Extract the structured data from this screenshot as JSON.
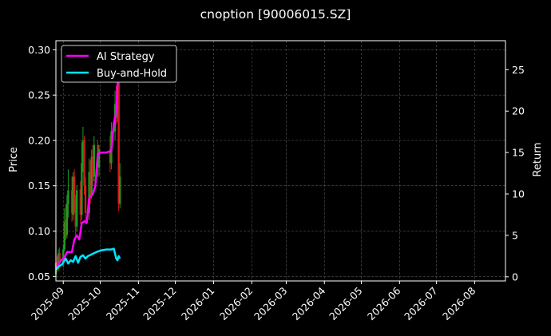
{
  "chart_data": {
    "type": "line",
    "title": "cnoption [90006015.SZ]",
    "ylabel_left": "Price",
    "ylabel_right": "Return",
    "x_ticks": [
      "2025-09",
      "2025-10",
      "2025-11",
      "2025-12",
      "2026-01",
      "2026-02",
      "2026-03",
      "2026-04",
      "2026-05",
      "2026-06",
      "2026-07",
      "2026-08"
    ],
    "x_range": [
      "2025-08-26",
      "2026-08-26"
    ],
    "ylim_left": [
      0.045,
      0.31
    ],
    "yticks_left": [
      "0.05",
      "0.10",
      "0.15",
      "0.20",
      "0.25",
      "0.30"
    ],
    "yticks_left_values": [
      0.05,
      0.1,
      0.15,
      0.2,
      0.25,
      0.3
    ],
    "ylim_right": [
      -0.5,
      28.5
    ],
    "yticks_right": [
      "0",
      "5",
      "10",
      "15",
      "20",
      "25"
    ],
    "yticks_right_values": [
      0,
      5,
      10,
      15,
      20,
      25
    ],
    "grid": true,
    "legend_position": "top-left",
    "colors": {
      "background": "#000000",
      "grid": "#555555",
      "axis": "#ffffff",
      "up_candle": "#1f9a1f",
      "down_candle": "#d41b1b",
      "ai_strategy": "#ff00ff",
      "buy_and_hold": "#00e5ff"
    },
    "candles": [
      {
        "date": "2025-08-26",
        "open": 0.052,
        "close": 0.065,
        "high": 0.068,
        "low": 0.05
      },
      {
        "date": "2025-08-27",
        "open": 0.066,
        "close": 0.058,
        "high": 0.072,
        "low": 0.055
      },
      {
        "date": "2025-08-28",
        "open": 0.058,
        "close": 0.075,
        "high": 0.08,
        "low": 0.056
      },
      {
        "date": "2025-08-29",
        "open": 0.076,
        "close": 0.064,
        "high": 0.082,
        "low": 0.062
      },
      {
        "date": "2025-09-01",
        "open": 0.064,
        "close": 0.08,
        "high": 0.085,
        "low": 0.06
      },
      {
        "date": "2025-09-02",
        "open": 0.08,
        "close": 0.11,
        "high": 0.125,
        "low": 0.078
      },
      {
        "date": "2025-09-03",
        "open": 0.112,
        "close": 0.095,
        "high": 0.13,
        "low": 0.09
      },
      {
        "date": "2025-09-04",
        "open": 0.096,
        "close": 0.13,
        "high": 0.14,
        "low": 0.092
      },
      {
        "date": "2025-09-05",
        "open": 0.13,
        "close": 0.145,
        "high": 0.168,
        "low": 0.115
      },
      {
        "date": "2025-09-08",
        "open": 0.145,
        "close": 0.12,
        "high": 0.16,
        "low": 0.11
      },
      {
        "date": "2025-09-09",
        "open": 0.118,
        "close": 0.16,
        "high": 0.165,
        "low": 0.112
      },
      {
        "date": "2025-09-10",
        "open": 0.16,
        "close": 0.135,
        "high": 0.168,
        "low": 0.12
      },
      {
        "date": "2025-09-11",
        "open": 0.135,
        "close": 0.105,
        "high": 0.14,
        "low": 0.09
      },
      {
        "date": "2025-09-12",
        "open": 0.105,
        "close": 0.145,
        "high": 0.15,
        "low": 0.1
      },
      {
        "date": "2025-09-15",
        "open": 0.146,
        "close": 0.118,
        "high": 0.155,
        "low": 0.108
      },
      {
        "date": "2025-09-16",
        "open": 0.118,
        "close": 0.175,
        "high": 0.198,
        "low": 0.112
      },
      {
        "date": "2025-09-17",
        "open": 0.175,
        "close": 0.2,
        "high": 0.215,
        "low": 0.165
      },
      {
        "date": "2025-09-18",
        "open": 0.2,
        "close": 0.15,
        "high": 0.205,
        "low": 0.14
      },
      {
        "date": "2025-09-19",
        "open": 0.15,
        "close": 0.12,
        "high": 0.16,
        "low": 0.108
      },
      {
        "date": "2025-09-22",
        "open": 0.12,
        "close": 0.165,
        "high": 0.18,
        "low": 0.112
      },
      {
        "date": "2025-09-23",
        "open": 0.165,
        "close": 0.14,
        "high": 0.178,
        "low": 0.13
      },
      {
        "date": "2025-09-24",
        "open": 0.14,
        "close": 0.182,
        "high": 0.19,
        "low": 0.135
      },
      {
        "date": "2025-09-25",
        "open": 0.182,
        "close": 0.16,
        "high": 0.195,
        "low": 0.15
      },
      {
        "date": "2025-09-26",
        "open": 0.16,
        "close": 0.195,
        "high": 0.205,
        "low": 0.155
      },
      {
        "date": "2025-09-29",
        "open": 0.195,
        "close": 0.17,
        "high": 0.2,
        "low": 0.16
      },
      {
        "date": "2025-09-30",
        "open": 0.17,
        "close": 0.19,
        "high": 0.195,
        "low": 0.16
      },
      {
        "date": "2025-10-09",
        "open": 0.19,
        "close": 0.175,
        "high": 0.205,
        "low": 0.165
      },
      {
        "date": "2025-10-10",
        "open": 0.175,
        "close": 0.21,
        "high": 0.22,
        "low": 0.168
      },
      {
        "date": "2025-10-13",
        "open": 0.21,
        "close": 0.24,
        "high": 0.255,
        "low": 0.2
      },
      {
        "date": "2025-10-14",
        "open": 0.24,
        "close": 0.225,
        "high": 0.26,
        "low": 0.218
      },
      {
        "date": "2025-10-15",
        "open": 0.225,
        "close": 0.27,
        "high": 0.295,
        "low": 0.22
      },
      {
        "date": "2025-10-16",
        "open": 0.27,
        "close": 0.13,
        "high": 0.275,
        "low": 0.122
      },
      {
        "date": "2025-10-17",
        "open": 0.13,
        "close": 0.16,
        "high": 0.175,
        "low": 0.125
      }
    ],
    "series": [
      {
        "name": "AI Strategy",
        "color": "#ff00ff",
        "points": [
          {
            "date": "2025-08-26",
            "value": 0.9
          },
          {
            "date": "2025-08-28",
            "value": 1.5
          },
          {
            "date": "2025-08-30",
            "value": 2.0
          },
          {
            "date": "2025-09-02",
            "value": 2.3
          },
          {
            "date": "2025-09-04",
            "value": 3.0
          },
          {
            "date": "2025-09-08",
            "value": 3.0
          },
          {
            "date": "2025-09-10",
            "value": 4.5
          },
          {
            "date": "2025-09-12",
            "value": 5.0
          },
          {
            "date": "2025-09-14",
            "value": 4.5
          },
          {
            "date": "2025-09-16",
            "value": 6.5
          },
          {
            "date": "2025-09-18",
            "value": 6.7
          },
          {
            "date": "2025-09-20",
            "value": 6.5
          },
          {
            "date": "2025-09-22",
            "value": 9.5
          },
          {
            "date": "2025-09-25",
            "value": 10.0
          },
          {
            "date": "2025-09-27",
            "value": 11.0
          },
          {
            "date": "2025-09-29",
            "value": 14.8
          },
          {
            "date": "2025-10-01",
            "value": 15.0
          },
          {
            "date": "2025-10-06",
            "value": 15.0
          },
          {
            "date": "2025-10-10",
            "value": 15.2
          },
          {
            "date": "2025-10-12",
            "value": 18.5
          },
          {
            "date": "2025-10-14",
            "value": 20.0
          },
          {
            "date": "2025-10-15",
            "value": 23.0
          },
          {
            "date": "2025-10-16",
            "value": 26.0
          }
        ]
      },
      {
        "name": "Buy-and-Hold",
        "color": "#00e5ff",
        "points": [
          {
            "date": "2025-08-26",
            "value": 0.9
          },
          {
            "date": "2025-08-28",
            "value": 1.2
          },
          {
            "date": "2025-08-31",
            "value": 1.5
          },
          {
            "date": "2025-09-03",
            "value": 2.2
          },
          {
            "date": "2025-09-05",
            "value": 1.6
          },
          {
            "date": "2025-09-07",
            "value": 2.0
          },
          {
            "date": "2025-09-09",
            "value": 1.8
          },
          {
            "date": "2025-09-11",
            "value": 2.5
          },
          {
            "date": "2025-09-13",
            "value": 1.7
          },
          {
            "date": "2025-09-15",
            "value": 2.4
          },
          {
            "date": "2025-09-17",
            "value": 2.6
          },
          {
            "date": "2025-09-19",
            "value": 2.2
          },
          {
            "date": "2025-09-21",
            "value": 2.5
          },
          {
            "date": "2025-09-24",
            "value": 2.7
          },
          {
            "date": "2025-09-28",
            "value": 3.0
          },
          {
            "date": "2025-10-02",
            "value": 3.2
          },
          {
            "date": "2025-10-06",
            "value": 3.3
          },
          {
            "date": "2025-10-10",
            "value": 3.3
          },
          {
            "date": "2025-10-12",
            "value": 3.4
          },
          {
            "date": "2025-10-13",
            "value": 2.8
          },
          {
            "date": "2025-10-14",
            "value": 2.2
          },
          {
            "date": "2025-10-15",
            "value": 2.0
          },
          {
            "date": "2025-10-16",
            "value": 2.5
          },
          {
            "date": "2025-10-17",
            "value": 2.2
          }
        ]
      }
    ]
  }
}
